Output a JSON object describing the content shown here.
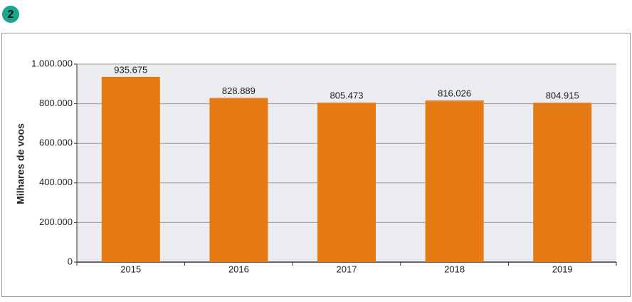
{
  "badge": "2",
  "chart_data": {
    "type": "bar",
    "y_label": "Milhares de voos",
    "categories": [
      "2015",
      "2016",
      "2017",
      "2018",
      "2019"
    ],
    "values": [
      935675,
      828889,
      805473,
      816026,
      804915
    ],
    "value_labels": [
      "935.675",
      "828.889",
      "805.473",
      "816.026",
      "804.915"
    ],
    "color": "#e67b16",
    "ylim": [
      0,
      1000000
    ],
    "yticks": [
      0,
      {
        "value": 200000,
        "label": "200.000"
      },
      {
        "value": 400000,
        "label": "400.000"
      },
      {
        "value": 600000,
        "label": "600.000"
      },
      {
        "value": 800000,
        "label": "800.000"
      },
      {
        "value": 1000000,
        "label": "1.000.000"
      }
    ],
    "grid": true
  }
}
